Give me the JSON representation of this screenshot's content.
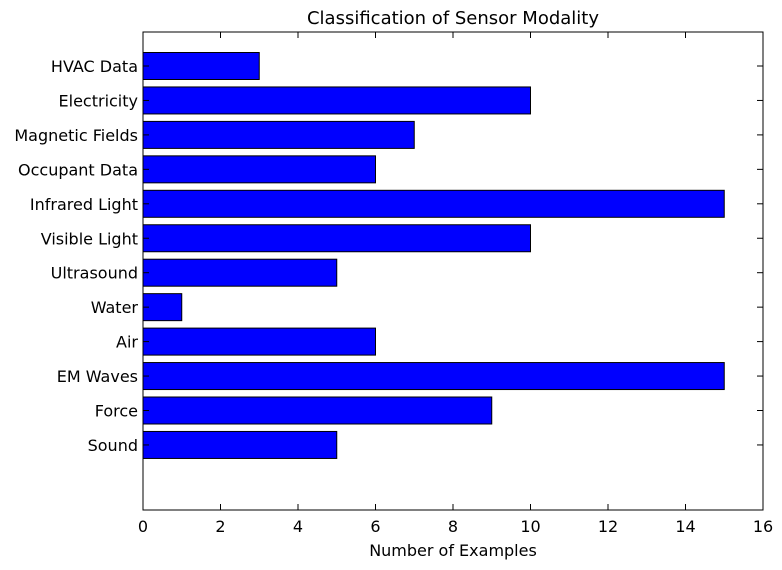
{
  "chart_data": {
    "type": "bar",
    "orientation": "horizontal",
    "title": "Classification of Sensor Modality",
    "xlabel": "Number of Examples",
    "ylabel": "",
    "categories": [
      "Sound",
      "Force",
      "EM Waves",
      "Air",
      "Water",
      "Ultrasound",
      "Visible Light",
      "Infrared Light",
      "Occupant Data",
      "Magnetic Fields",
      "Electricity",
      "HVAC Data"
    ],
    "values": [
      5,
      9,
      15,
      6,
      1,
      5,
      10,
      15,
      6,
      7,
      10,
      3
    ],
    "xlim": [
      0,
      16
    ],
    "xticks": [
      0,
      2,
      4,
      6,
      8,
      10,
      12,
      14,
      16
    ],
    "grid": false,
    "bar_color": "#0000ff",
    "edge_color": "#000000"
  }
}
